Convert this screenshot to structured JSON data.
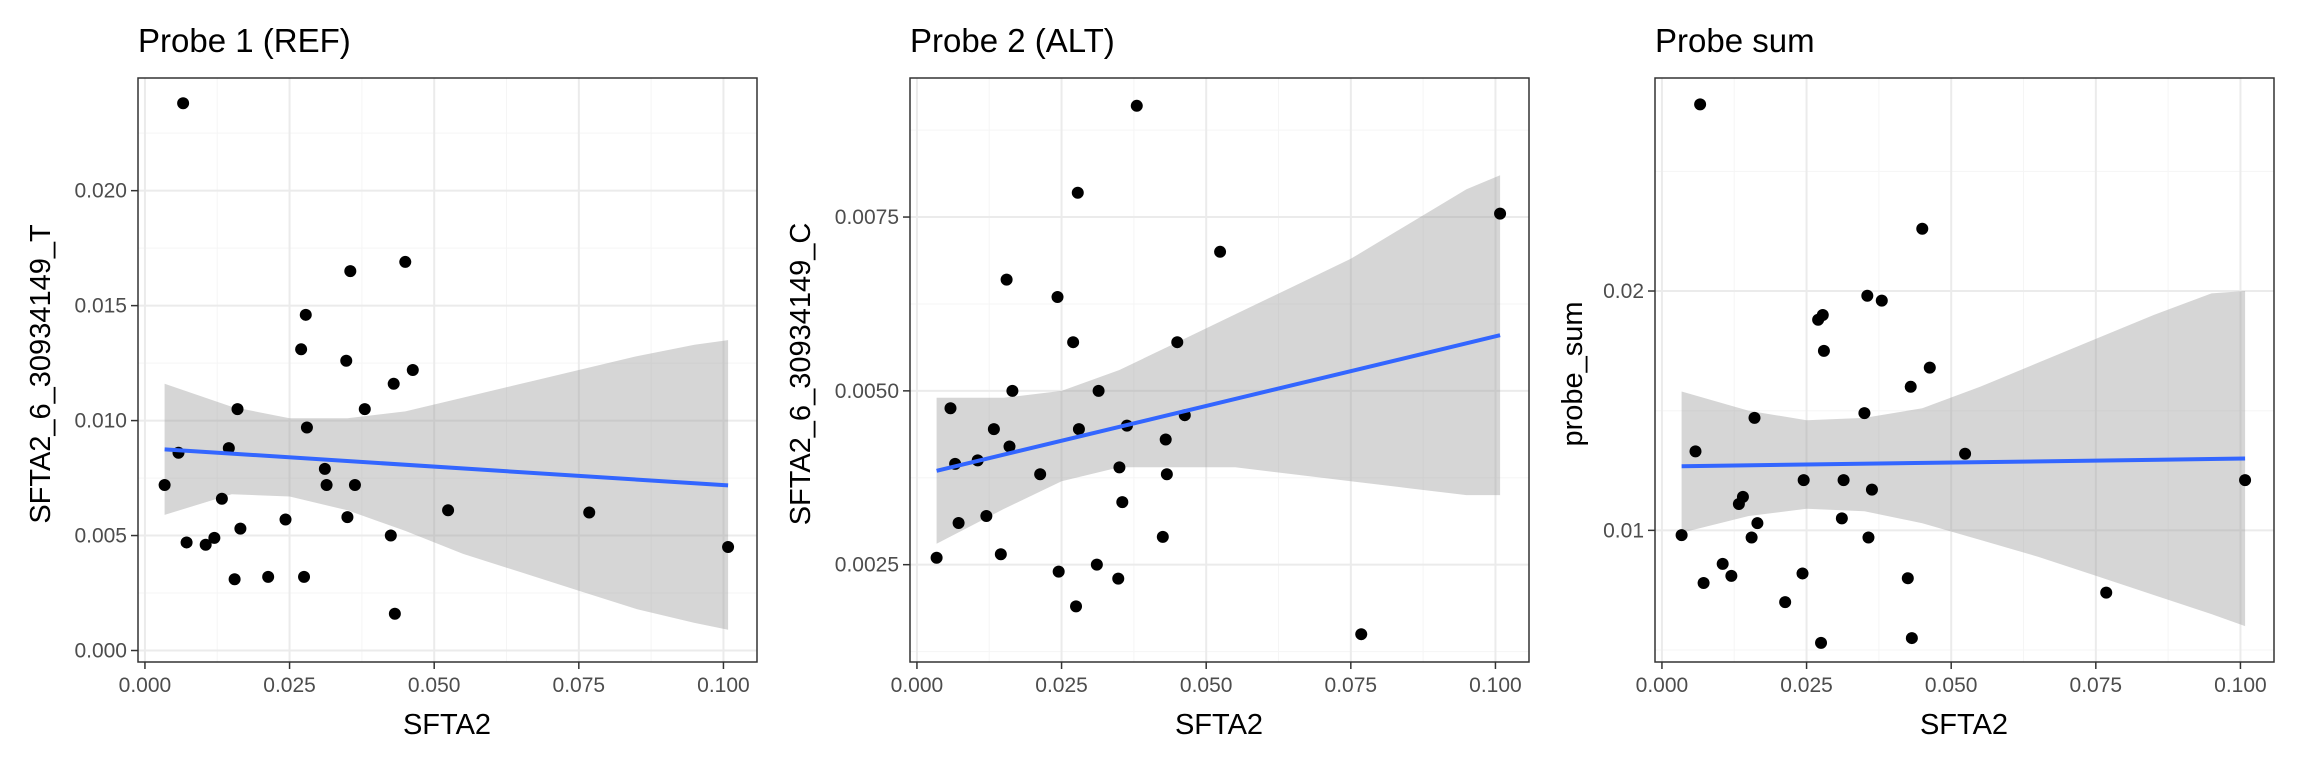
{
  "chart_data": [
    {
      "type": "scatter",
      "title": "Probe 1 (REF)",
      "xlabel": "SFTA2",
      "ylabel": "SFTA2_6_30934149_T",
      "xlim": [
        -0.0012,
        0.1058
      ],
      "ylim": [
        -0.0005,
        0.0249
      ],
      "x_ticks": [
        0,
        0.025,
        0.05,
        0.075,
        0.1
      ],
      "x_tick_labels": [
        "0.000",
        "0.025",
        "0.050",
        "0.075",
        "0.100"
      ],
      "y_ticks": [
        0,
        0.005,
        0.01,
        0.015,
        0.02
      ],
      "y_tick_labels": [
        "0.000",
        "0.005",
        "0.010",
        "0.015",
        "0.020"
      ],
      "grid": true,
      "points": [
        {
          "x": 0.0034,
          "y": 0.0072
        },
        {
          "x": 0.0058,
          "y": 0.0086
        },
        {
          "x": 0.0066,
          "y": 0.0238
        },
        {
          "x": 0.0072,
          "y": 0.0047
        },
        {
          "x": 0.0105,
          "y": 0.0046
        },
        {
          "x": 0.012,
          "y": 0.0049
        },
        {
          "x": 0.0133,
          "y": 0.0066
        },
        {
          "x": 0.0145,
          "y": 0.0088
        },
        {
          "x": 0.0155,
          "y": 0.0031
        },
        {
          "x": 0.016,
          "y": 0.0105
        },
        {
          "x": 0.0165,
          "y": 0.0053
        },
        {
          "x": 0.0213,
          "y": 0.0032
        },
        {
          "x": 0.0243,
          "y": 0.0057
        },
        {
          "x": 0.027,
          "y": 0.0131
        },
        {
          "x": 0.0275,
          "y": 0.0032
        },
        {
          "x": 0.0278,
          "y": 0.0146
        },
        {
          "x": 0.028,
          "y": 0.0097
        },
        {
          "x": 0.0311,
          "y": 0.0079
        },
        {
          "x": 0.0314,
          "y": 0.0072
        },
        {
          "x": 0.0348,
          "y": 0.0126
        },
        {
          "x": 0.035,
          "y": 0.0058
        },
        {
          "x": 0.0355,
          "y": 0.0165
        },
        {
          "x": 0.0363,
          "y": 0.0072
        },
        {
          "x": 0.038,
          "y": 0.0105
        },
        {
          "x": 0.0425,
          "y": 0.005
        },
        {
          "x": 0.043,
          "y": 0.0116
        },
        {
          "x": 0.0432,
          "y": 0.0016
        },
        {
          "x": 0.045,
          "y": 0.0169
        },
        {
          "x": 0.0463,
          "y": 0.0122
        },
        {
          "x": 0.0524,
          "y": 0.0061
        },
        {
          "x": 0.0768,
          "y": 0.006
        },
        {
          "x": 0.1008,
          "y": 0.0045
        }
      ],
      "fit": {
        "x": [
          0.0034,
          0.1008
        ],
        "y": [
          0.00875,
          0.00718
        ]
      },
      "band": {
        "x": [
          0.0034,
          0.015,
          0.025,
          0.035,
          0.045,
          0.055,
          0.065,
          0.075,
          0.085,
          0.095,
          0.1008
        ],
        "upper": [
          0.0116,
          0.0106,
          0.0101,
          0.0101,
          0.0104,
          0.011,
          0.0116,
          0.0122,
          0.0128,
          0.0133,
          0.0135
        ],
        "lower": [
          0.0059,
          0.0068,
          0.0067,
          0.0061,
          0.0052,
          0.0042,
          0.0034,
          0.0026,
          0.0018,
          0.0012,
          0.0009
        ]
      }
    },
    {
      "type": "scatter",
      "title": "Probe 2 (ALT)",
      "xlabel": "SFTA2",
      "ylabel": "SFTA2_6_30934149_C",
      "xlim": [
        -0.0012,
        0.1058
      ],
      "ylim": [
        0.0011,
        0.0095
      ],
      "x_ticks": [
        0,
        0.025,
        0.05,
        0.075,
        0.1
      ],
      "x_tick_labels": [
        "0.000",
        "0.025",
        "0.050",
        "0.075",
        "0.100"
      ],
      "y_ticks": [
        0.0025,
        0.005,
        0.0075
      ],
      "y_tick_labels": [
        "0.0025",
        "0.0050",
        "0.0075"
      ],
      "grid": true,
      "points": [
        {
          "x": 0.0034,
          "y": 0.0026
        },
        {
          "x": 0.0058,
          "y": 0.00475
        },
        {
          "x": 0.0066,
          "y": 0.00395
        },
        {
          "x": 0.0072,
          "y": 0.0031
        },
        {
          "x": 0.0105,
          "y": 0.004
        },
        {
          "x": 0.012,
          "y": 0.0032
        },
        {
          "x": 0.0133,
          "y": 0.00445
        },
        {
          "x": 0.0145,
          "y": 0.00265
        },
        {
          "x": 0.0155,
          "y": 0.0066
        },
        {
          "x": 0.016,
          "y": 0.0042
        },
        {
          "x": 0.0165,
          "y": 0.005
        },
        {
          "x": 0.0213,
          "y": 0.0038
        },
        {
          "x": 0.0243,
          "y": 0.00635
        },
        {
          "x": 0.0245,
          "y": 0.0024
        },
        {
          "x": 0.027,
          "y": 0.0057
        },
        {
          "x": 0.0275,
          "y": 0.0019
        },
        {
          "x": 0.0278,
          "y": 0.00785
        },
        {
          "x": 0.028,
          "y": 0.00445
        },
        {
          "x": 0.0311,
          "y": 0.0025
        },
        {
          "x": 0.0314,
          "y": 0.005
        },
        {
          "x": 0.0348,
          "y": 0.0023
        },
        {
          "x": 0.035,
          "y": 0.0039
        },
        {
          "x": 0.0355,
          "y": 0.0034
        },
        {
          "x": 0.0363,
          "y": 0.0045
        },
        {
          "x": 0.038,
          "y": 0.0091
        },
        {
          "x": 0.0425,
          "y": 0.0029
        },
        {
          "x": 0.043,
          "y": 0.0043
        },
        {
          "x": 0.0432,
          "y": 0.0038
        },
        {
          "x": 0.045,
          "y": 0.0057
        },
        {
          "x": 0.0463,
          "y": 0.00465
        },
        {
          "x": 0.0524,
          "y": 0.007
        },
        {
          "x": 0.0768,
          "y": 0.0015
        },
        {
          "x": 0.1008,
          "y": 0.00755
        }
      ],
      "fit": {
        "x": [
          0.0034,
          0.1008
        ],
        "y": [
          0.00385,
          0.0058
        ]
      },
      "band": {
        "x": [
          0.0034,
          0.015,
          0.025,
          0.035,
          0.045,
          0.055,
          0.065,
          0.075,
          0.085,
          0.095,
          0.1008
        ],
        "upper": [
          0.0049,
          0.0049,
          0.005,
          0.0053,
          0.0057,
          0.0061,
          0.0065,
          0.0069,
          0.0074,
          0.0079,
          0.0081
        ],
        "lower": [
          0.0028,
          0.0033,
          0.0037,
          0.0039,
          0.0039,
          0.0039,
          0.0038,
          0.0037,
          0.0036,
          0.0035,
          0.0035
        ]
      }
    },
    {
      "type": "scatter",
      "title": "Probe sum",
      "xlabel": "SFTA2",
      "ylabel": "probe_sum",
      "xlim": [
        -0.0012,
        0.1058
      ],
      "ylim": [
        0.0045,
        0.0289
      ],
      "x_ticks": [
        0,
        0.025,
        0.05,
        0.075,
        0.1
      ],
      "x_tick_labels": [
        "0.000",
        "0.025",
        "0.050",
        "0.075",
        "0.100"
      ],
      "y_ticks": [
        0.01,
        0.02
      ],
      "y_tick_labels": [
        "0.01",
        "0.02"
      ],
      "grid": true,
      "points": [
        {
          "x": 0.0034,
          "y": 0.0098
        },
        {
          "x": 0.0058,
          "y": 0.0133
        },
        {
          "x": 0.0066,
          "y": 0.0278
        },
        {
          "x": 0.0072,
          "y": 0.0078
        },
        {
          "x": 0.0105,
          "y": 0.0086
        },
        {
          "x": 0.012,
          "y": 0.0081
        },
        {
          "x": 0.0133,
          "y": 0.0111
        },
        {
          "x": 0.014,
          "y": 0.0114
        },
        {
          "x": 0.0155,
          "y": 0.0097
        },
        {
          "x": 0.016,
          "y": 0.0147
        },
        {
          "x": 0.0165,
          "y": 0.0103
        },
        {
          "x": 0.0213,
          "y": 0.007
        },
        {
          "x": 0.0243,
          "y": 0.0082
        },
        {
          "x": 0.0245,
          "y": 0.0121
        },
        {
          "x": 0.027,
          "y": 0.0188
        },
        {
          "x": 0.0275,
          "y": 0.0053
        },
        {
          "x": 0.0278,
          "y": 0.019
        },
        {
          "x": 0.028,
          "y": 0.0175
        },
        {
          "x": 0.0311,
          "y": 0.0105
        },
        {
          "x": 0.0314,
          "y": 0.0121
        },
        {
          "x": 0.035,
          "y": 0.0149
        },
        {
          "x": 0.0355,
          "y": 0.0198
        },
        {
          "x": 0.0357,
          "y": 0.0097
        },
        {
          "x": 0.0363,
          "y": 0.0117
        },
        {
          "x": 0.038,
          "y": 0.0196
        },
        {
          "x": 0.0425,
          "y": 0.008
        },
        {
          "x": 0.043,
          "y": 0.016
        },
        {
          "x": 0.0432,
          "y": 0.0055
        },
        {
          "x": 0.045,
          "y": 0.0226
        },
        {
          "x": 0.0463,
          "y": 0.0168
        },
        {
          "x": 0.0524,
          "y": 0.0132
        },
        {
          "x": 0.0768,
          "y": 0.0074
        },
        {
          "x": 0.1008,
          "y": 0.0121
        }
      ],
      "fit": {
        "x": [
          0.0034,
          0.1008
        ],
        "y": [
          0.01268,
          0.013
        ]
      },
      "band": {
        "x": [
          0.0034,
          0.015,
          0.025,
          0.035,
          0.045,
          0.055,
          0.065,
          0.075,
          0.085,
          0.095,
          0.1008
        ],
        "upper": [
          0.0158,
          0.015,
          0.0146,
          0.0147,
          0.0151,
          0.016,
          0.017,
          0.018,
          0.019,
          0.0199,
          0.02
        ],
        "lower": [
          0.0099,
          0.0106,
          0.0109,
          0.0108,
          0.0103,
          0.0096,
          0.0089,
          0.0081,
          0.0073,
          0.0065,
          0.006
        ]
      }
    }
  ],
  "colors": {
    "point": "#000000",
    "fit_line": "#3366ff",
    "band": "#999999",
    "panel_border": "#333333",
    "grid_major": "#ebebeb",
    "grid_minor": "#f5f5f5",
    "tick_label": "#4d4d4d"
  }
}
